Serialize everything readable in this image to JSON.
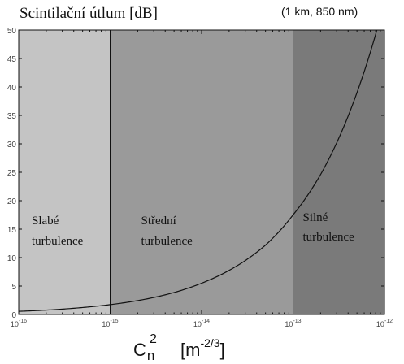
{
  "chart_data": {
    "type": "line",
    "title": "Scintilační útlum [dB]",
    "subtitle": "(1 km, 850 nm)",
    "xlabel_main": "C",
    "xlabel_sub": "n",
    "xlabel_sup": "2",
    "xlabel_unit_open": "[m",
    "xlabel_unit_sup": "-2/3",
    "xlabel_unit_close": "]",
    "x_scale": "log",
    "xlim": [
      1e-16,
      1e-12
    ],
    "ylim": [
      0,
      50
    ],
    "x_ticks": [
      {
        "value": 1e-16,
        "base": "10",
        "exp": "-16"
      },
      {
        "value": 1e-15,
        "base": "10",
        "exp": "-15"
      },
      {
        "value": 1e-14,
        "base": "10",
        "exp": "-14"
      },
      {
        "value": 1e-13,
        "base": "10",
        "exp": "-13"
      },
      {
        "value": 1e-12,
        "base": "10",
        "exp": "-12"
      }
    ],
    "y_ticks": [
      0,
      5,
      10,
      15,
      20,
      25,
      30,
      35,
      40,
      45,
      50
    ],
    "regions": [
      {
        "from": 1e-16,
        "to": 1e-15,
        "line1": "Slabé",
        "line2": "turbulence",
        "color": "#c4c4c4"
      },
      {
        "from": 1e-15,
        "to": 1e-13,
        "line1": "Střední",
        "line2": "turbulence",
        "color": "#9a9a9a"
      },
      {
        "from": 1e-13,
        "to": 1e-12,
        "line1": "Silné",
        "line2": "turbulence",
        "color": "#7a7a7a"
      }
    ],
    "series": [
      {
        "x": [
          1e-16,
          2e-16,
          5e-16,
          1e-15,
          2e-15,
          5e-15,
          1e-14,
          2e-14,
          5e-14,
          1e-13,
          2e-13,
          5e-13,
          1e-12
        ],
        "y": [
          0.55,
          0.77,
          1.22,
          1.73,
          2.44,
          3.86,
          5.5,
          7.75,
          12.2,
          17.5,
          24.6,
          39.0,
          55.0
        ]
      }
    ]
  }
}
